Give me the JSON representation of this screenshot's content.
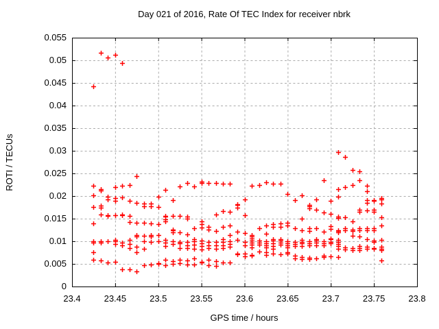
{
  "chart_data": {
    "type": "scatter",
    "title": "Day 021 of 2016, Rate Of TEC Index for receiver nbrk",
    "xlabel": "GPS time / hours",
    "ylabel": "ROTI / TECUs",
    "xlim": [
      23.4,
      23.8
    ],
    "ylim": [
      0,
      0.055
    ],
    "xticks": [
      23.4,
      23.45,
      23.5,
      23.55,
      23.6,
      23.65,
      23.7,
      23.75,
      23.8
    ],
    "xtick_labels": [
      "23.4",
      "23.45",
      "23.5",
      "23.55",
      "23.6",
      "23.65",
      "23.7",
      "23.75",
      "23.8"
    ],
    "yticks": [
      0,
      0.005,
      0.01,
      0.015,
      0.02,
      0.025,
      0.03,
      0.035,
      0.04,
      0.045,
      0.05,
      0.055
    ],
    "ytick_labels": [
      "0",
      "0.005",
      "0.01",
      "0.015",
      "0.02",
      "0.025",
      "0.03",
      "0.035",
      "0.04",
      "0.045",
      "0.05",
      "0.055"
    ],
    "grid": true,
    "legend": "none",
    "marker": "plus",
    "marker_color": "#ff0000",
    "grid_color": "#ababab",
    "border_color": "#000000",
    "series": [
      {
        "name": "ROTI",
        "groups": [
          {
            "x": 23.425,
            "ys": [
              0.0443,
              0.0223,
              0.0202,
              0.0176,
              0.0139,
              0.01,
              0.0097,
              0.0076,
              0.0059
            ]
          },
          {
            "x": 23.4333,
            "ys": [
              0.0517,
              0.0215,
              0.0212,
              0.0179,
              0.0174,
              0.0159,
              0.01,
              0.0097,
              0.0058
            ]
          },
          {
            "x": 23.4417,
            "ys": [
              0.0506,
              0.0198,
              0.0193,
              0.0158,
              0.0156,
              0.01,
              0.0053
            ]
          },
          {
            "x": 23.45,
            "ys": [
              0.0512,
              0.022,
              0.0195,
              0.019,
              0.0157,
              0.0103,
              0.01,
              0.0094,
              0.0055
            ]
          },
          {
            "x": 23.4583,
            "ys": [
              0.0494,
              0.0223,
              0.0197,
              0.0159,
              0.0157,
              0.0097,
              0.0091,
              0.0038
            ]
          },
          {
            "x": 23.4667,
            "ys": [
              0.0224,
              0.0189,
              0.0156,
              0.0142,
              0.0103,
              0.0094,
              0.0085,
              0.0038
            ]
          },
          {
            "x": 23.475,
            "ys": [
              0.0244,
              0.0185,
              0.0141,
              0.0114,
              0.011,
              0.0088,
              0.0076,
              0.0033
            ]
          },
          {
            "x": 23.4833,
            "ys": [
              0.0183,
              0.0177,
              0.0141,
              0.0112,
              0.01,
              0.0083,
              0.0047
            ]
          },
          {
            "x": 23.4917,
            "ys": [
              0.0183,
              0.0177,
              0.0139,
              0.0114,
              0.0111,
              0.0098,
              0.0048
            ]
          },
          {
            "x": 23.5,
            "ys": [
              0.0198,
              0.0176,
              0.0138,
              0.0113,
              0.01,
              0.0052,
              0.005
            ]
          },
          {
            "x": 23.5083,
            "ys": [
              0.0214,
              0.0156,
              0.0155,
              0.0148,
              0.0144,
              0.0103,
              0.0097,
              0.0089,
              0.0059,
              0.0047
            ]
          },
          {
            "x": 23.5167,
            "ys": [
              0.0191,
              0.0156,
              0.0126,
              0.0124,
              0.012,
              0.01,
              0.0094,
              0.0056,
              0.005
            ]
          },
          {
            "x": 23.525,
            "ys": [
              0.0221,
              0.0156,
              0.012,
              0.0098,
              0.0096,
              0.0085,
              0.0059,
              0.0052
            ]
          },
          {
            "x": 23.5333,
            "ys": [
              0.0229,
              0.0155,
              0.015,
              0.0115,
              0.0098,
              0.0091,
              0.0085,
              0.0058,
              0.0048
            ]
          },
          {
            "x": 23.5417,
            "ys": [
              0.0221,
              0.0129,
              0.0104,
              0.01,
              0.0092,
              0.0084,
              0.0062,
              0.0048
            ]
          },
          {
            "x": 23.55,
            "ys": [
              0.0232,
              0.0229,
              0.0144,
              0.0138,
              0.013,
              0.0101,
              0.0095,
              0.0089,
              0.0082,
              0.0055,
              0.0053
            ]
          },
          {
            "x": 23.5583,
            "ys": [
              0.0229,
              0.0132,
              0.0126,
              0.0098,
              0.0091,
              0.0085,
              0.0059,
              0.0047
            ]
          },
          {
            "x": 23.5667,
            "ys": [
              0.0229,
              0.0159,
              0.0123,
              0.0098,
              0.0091,
              0.0083,
              0.0056,
              0.0045
            ]
          },
          {
            "x": 23.575,
            "ys": [
              0.0227,
              0.0167,
              0.0132,
              0.0104,
              0.0098,
              0.0091,
              0.0085,
              0.0053
            ]
          },
          {
            "x": 23.5833,
            "ys": [
              0.0227,
              0.0165,
              0.0135,
              0.0114,
              0.01,
              0.0094,
              0.0088,
              0.0053
            ]
          },
          {
            "x": 23.5917,
            "ys": [
              0.0182,
              0.018,
              0.0174,
              0.0121,
              0.0103,
              0.0073,
              0.0071
            ]
          },
          {
            "x": 23.6,
            "ys": [
              0.0192,
              0.0158,
              0.0118,
              0.0098,
              0.0091,
              0.0073,
              0.0067
            ]
          },
          {
            "x": 23.6083,
            "ys": [
              0.0223,
              0.0114,
              0.011,
              0.0106,
              0.0102,
              0.0097,
              0.0093,
              0.0086,
              0.007,
              0.0068
            ]
          },
          {
            "x": 23.6167,
            "ys": [
              0.0224,
              0.0129,
              0.0101,
              0.0097,
              0.0092,
              0.0077
            ]
          },
          {
            "x": 23.625,
            "ys": [
              0.023,
              0.0135,
              0.0117,
              0.01,
              0.0095,
              0.0091,
              0.0086,
              0.0076,
              0.007
            ]
          },
          {
            "x": 23.6333,
            "ys": [
              0.0227,
              0.0138,
              0.0132,
              0.0105,
              0.0101,
              0.0096,
              0.009,
              0.0084,
              0.0073
            ]
          },
          {
            "x": 23.6417,
            "ys": [
              0.0227,
              0.0139,
              0.0132,
              0.0105,
              0.0101,
              0.0097,
              0.0092,
              0.0071
            ]
          },
          {
            "x": 23.65,
            "ys": [
              0.0205,
              0.0141,
              0.0135,
              0.01,
              0.0095,
              0.0091,
              0.0086,
              0.0076,
              0.0072
            ]
          },
          {
            "x": 23.6583,
            "ys": [
              0.0191,
              0.0129,
              0.0098,
              0.0094,
              0.009,
              0.0068,
              0.0062
            ]
          },
          {
            "x": 23.6667,
            "ys": [
              0.0202,
              0.015,
              0.0124,
              0.0103,
              0.0099,
              0.0095,
              0.009,
              0.0065,
              0.0061
            ]
          },
          {
            "x": 23.675,
            "ys": [
              0.018,
              0.0177,
              0.0172,
              0.0129,
              0.0123,
              0.01,
              0.0095,
              0.0091,
              0.0064,
              0.0061
            ]
          },
          {
            "x": 23.6833,
            "ys": [
              0.0192,
              0.017,
              0.0129,
              0.0105,
              0.0101,
              0.0097,
              0.0091,
              0.0062
            ]
          },
          {
            "x": 23.6917,
            "ys": [
              0.0235,
              0.0164,
              0.0121,
              0.01,
              0.0095,
              0.0091,
              0.0068,
              0.0065
            ]
          },
          {
            "x": 23.7,
            "ys": [
              0.0189,
              0.0161,
              0.0133,
              0.0128,
              0.0106,
              0.0104,
              0.0099,
              0.0095,
              0.0067
            ]
          },
          {
            "x": 23.7083,
            "ys": [
              0.0297,
              0.0215,
              0.0198,
              0.0155,
              0.0152,
              0.0125,
              0.0122,
              0.012,
              0.0103,
              0.0099,
              0.0094,
              0.0089,
              0.0084,
              0.0065
            ]
          },
          {
            "x": 23.7167,
            "ys": [
              0.0286,
              0.022,
              0.0153,
              0.0129,
              0.0125,
              0.0086,
              0.0082
            ]
          },
          {
            "x": 23.725,
            "ys": [
              0.0258,
              0.0224,
              0.0144,
              0.0126,
              0.0122,
              0.0112,
              0.0085,
              0.008
            ]
          },
          {
            "x": 23.7333,
            "ys": [
              0.0255,
              0.0235,
              0.0169,
              0.0165,
              0.0129,
              0.0125,
              0.0111,
              0.0089,
              0.0085,
              0.0081
            ]
          },
          {
            "x": 23.7417,
            "ys": [
              0.0223,
              0.0211,
              0.0191,
              0.0185,
              0.0168,
              0.0129,
              0.0124,
              0.0105,
              0.0088,
              0.0084
            ]
          },
          {
            "x": 23.75,
            "ys": [
              0.0191,
              0.0189,
              0.0169,
              0.0165,
              0.0129,
              0.0124,
              0.0101,
              0.0099,
              0.0085,
              0.0083
            ]
          },
          {
            "x": 23.7583,
            "ys": [
              0.0196,
              0.0192,
              0.0184,
              0.0153,
              0.0135,
              0.0103,
              0.0088,
              0.0084,
              0.008,
              0.0058
            ]
          }
        ]
      }
    ]
  }
}
